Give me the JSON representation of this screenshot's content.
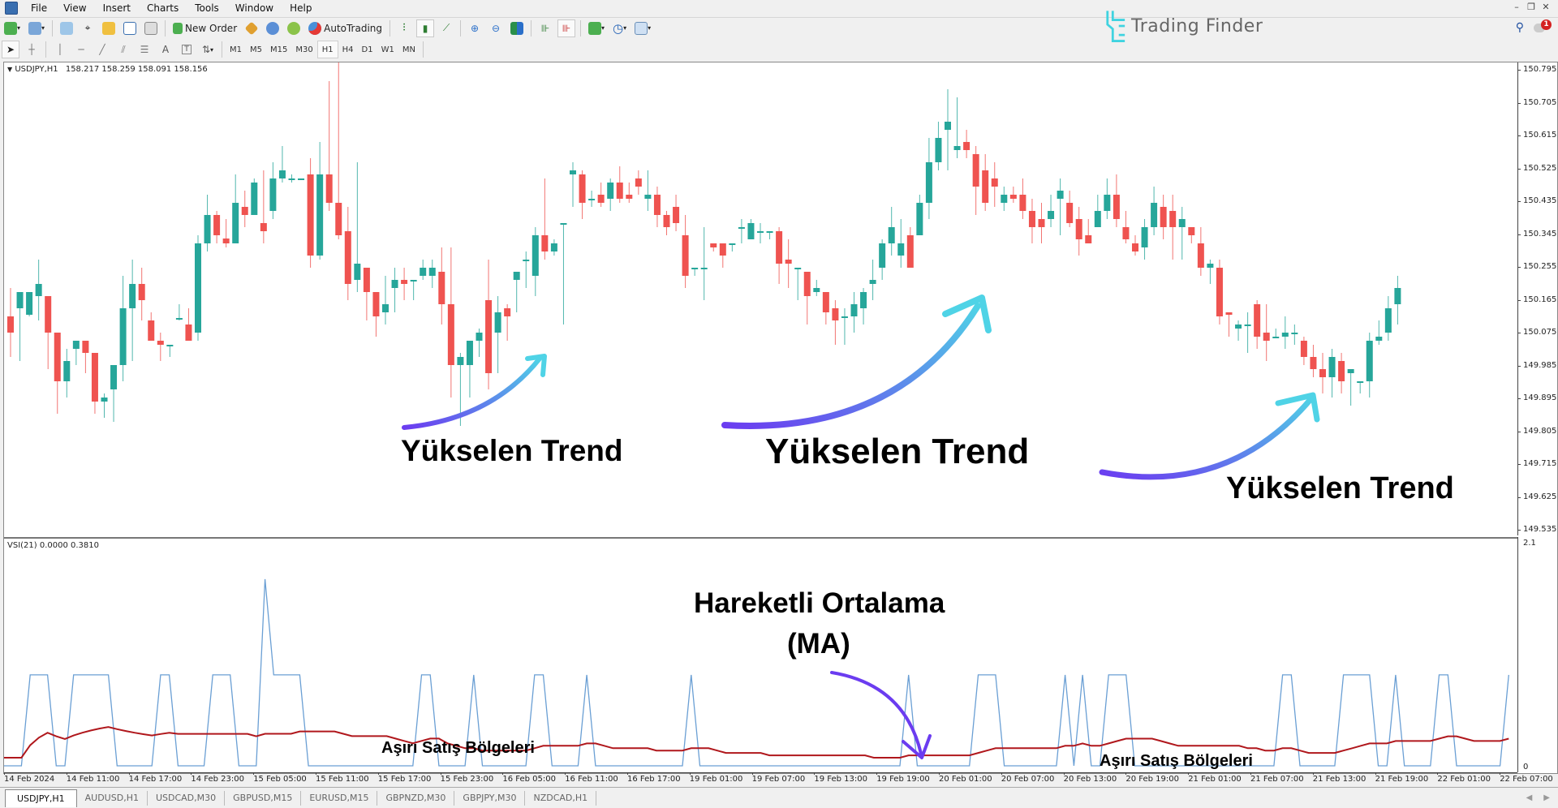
{
  "menu": {
    "items": [
      "File",
      "View",
      "Insert",
      "Charts",
      "Tools",
      "Window",
      "Help"
    ]
  },
  "toolbar": {
    "new_order_label": "New Order",
    "autotrading_label": "AutoTrading",
    "timeframes": [
      "M1",
      "M5",
      "M15",
      "M30",
      "H1",
      "H4",
      "D1",
      "W1",
      "MN"
    ],
    "active_timeframe": "H1"
  },
  "brand": {
    "logo_text": "Trading Finder",
    "logo_color": "#3fd3e0"
  },
  "notifications": {
    "count": "1"
  },
  "chart": {
    "symbol_label": "USDJPY,H1",
    "ohlc_label": "158.217 158.259 158.091 158.156",
    "price_ticks": [
      "150.795",
      "150.705",
      "150.615",
      "150.525",
      "150.435",
      "150.345",
      "150.255",
      "150.165",
      "150.075",
      "149.985",
      "149.895",
      "149.805",
      "149.715",
      "149.625",
      "149.535"
    ],
    "up_color": "#26a69a",
    "down_color": "#ef5350"
  },
  "indicator": {
    "label": "VSI(21) 0.0000 0.3810",
    "axis_max": "2.1",
    "axis_min": "0",
    "vsi_color": "#6a9fd4",
    "ma_color": "#b0171c"
  },
  "time_axis": [
    "14 Feb 2024",
    "14 Feb 11:00",
    "14 Feb 17:00",
    "14 Feb 23:00",
    "15 Feb 05:00",
    "15 Feb 11:00",
    "15 Feb 17:00",
    "15 Feb 23:00",
    "16 Feb 05:00",
    "16 Feb 11:00",
    "16 Feb 17:00",
    "19 Feb 01:00",
    "19 Feb 07:00",
    "19 Feb 13:00",
    "19 Feb 19:00",
    "20 Feb 01:00",
    "20 Feb 07:00",
    "20 Feb 13:00",
    "20 Feb 19:00",
    "21 Feb 01:00",
    "21 Feb 07:00",
    "21 Feb 13:00",
    "21 Feb 19:00",
    "22 Feb 01:00",
    "22 Feb 07:00"
  ],
  "annotations": {
    "trend1": "Yükselen Trend",
    "trend2": "Yükselen Trend",
    "trend3": "Yükselen Trend",
    "ma_title_line1": "Hareketli Ortalama",
    "ma_title_line2": "(MA)",
    "oversold1": "Aşırı Satış Bölgeleri",
    "oversold2": "Aşırı Satış Bölgeleri"
  },
  "symbol_tabs": [
    "USDJPY,H1",
    "AUDUSD,H1",
    "USDCAD,M30",
    "GBPUSD,M15",
    "EURUSD,M15",
    "GBPNZD,M30",
    "GBPJPY,M30",
    "NZDCAD,H1"
  ],
  "candles": [
    [
      210,
      190,
      245,
      160
    ],
    [
      220,
      240,
      185,
      155
    ],
    [
      212,
      240,
      210,
      230
    ],
    [
      235,
      250,
      205,
      280
    ],
    [
      235,
      190,
      160,
      145
    ],
    [
      190,
      130,
      115,
      90
    ],
    [
      130,
      155,
      170,
      110
    ],
    [
      170,
      180,
      170,
      150
    ],
    [
      180,
      165,
      180,
      140
    ],
    [
      165,
      105,
      110,
      90
    ],
    [
      105,
      110,
      115,
      85
    ],
    [
      120,
      150,
      145,
      80
    ],
    [
      150,
      220,
      260,
      130
    ],
    [
      220,
      250,
      280,
      155
    ],
    [
      250,
      230,
      270,
      205
    ],
    [
      205,
      180,
      215,
      185
    ],
    [
      180,
      175,
      190,
      155
    ],
    [
      175,
      175,
      170,
      160
    ],
    [
      208,
      208,
      205,
      225
    ],
    [
      200,
      180,
      220,
      180
    ],
    [
      190,
      300,
      310,
      180
    ],
    [
      300,
      335,
      360,
      290
    ],
    [
      335,
      310,
      340,
      300
    ],
    [
      306,
      300,
      330,
      295
    ],
    [
      300,
      350,
      385,
      300
    ],
    [
      345,
      335,
      365,
      320
    ],
    [
      335,
      375,
      380,
      335
    ],
    [
      325,
      315,
      390,
      300
    ],
    [
      340,
      380,
      400,
      330
    ],
    [
      380,
      390,
      420,
      375
    ],
    [
      380,
      380,
      385,
      375
    ],
    [
      380,
      380,
      380,
      380
    ],
    [
      385,
      285,
      405,
      270
    ],
    [
      285,
      385,
      425,
      280
    ],
    [
      385,
      350,
      500,
      340
    ],
    [
      350,
      310,
      530,
      305
    ],
    [
      315,
      250,
      345,
      230
    ],
    [
      255,
      275,
      400,
      240
    ],
    [
      270,
      240,
      255,
      205
    ],
    [
      240,
      210,
      215,
      185
    ],
    [
      215,
      225,
      260,
      200
    ],
    [
      245,
      255,
      270,
      215
    ],
    [
      255,
      250,
      270,
      230
    ],
    [
      255,
      255,
      255,
      230
    ],
    [
      260,
      270,
      280,
      255
    ],
    [
      260,
      270,
      280,
      245
    ],
    [
      265,
      225,
      295,
      200
    ],
    [
      225,
      150,
      295,
      110
    ],
    [
      150,
      160,
      165,
      75
    ],
    [
      150,
      180,
      180,
      110
    ],
    [
      180,
      190,
      195,
      160
    ],
    [
      230,
      140,
      280,
      120
    ],
    [
      190,
      215,
      235,
      140
    ],
    [
      220,
      210,
      225,
      180
    ],
    [
      255,
      265,
      255,
      215
    ],
    [
      280,
      280,
      290,
      245
    ],
    [
      260,
      310,
      320,
      235
    ],
    [
      310,
      290,
      380,
      280
    ],
    [
      290,
      300,
      305,
      285
    ],
    [
      325,
      325,
      275,
      200
    ],
    [
      385,
      390,
      400,
      345
    ],
    [
      385,
      350,
      390,
      330
    ],
    [
      355,
      355,
      365,
      345
    ],
    [
      360,
      350,
      375,
      345
    ],
    [
      355,
      375,
      380,
      340
    ],
    [
      375,
      355,
      395,
      350
    ],
    [
      360,
      355,
      375,
      350
    ],
    [
      380,
      370,
      390,
      360
    ],
    [
      355,
      360,
      390,
      340
    ],
    [
      360,
      335,
      370,
      320
    ],
    [
      335,
      320,
      340,
      310
    ],
    [
      345,
      325,
      360,
      315
    ],
    [
      310,
      260,
      335,
      245
    ],
    [
      270,
      270,
      265,
      260
    ],
    [
      270,
      270,
      320,
      230
    ],
    [
      300,
      295,
      300,
      290
    ],
    [
      300,
      285,
      300,
      270
    ],
    [
      300,
      300,
      300,
      290
    ],
    [
      320,
      320,
      330,
      300
    ],
    [
      305,
      325,
      330,
      310
    ],
    [
      315,
      315,
      325,
      300
    ],
    [
      315,
      315,
      315,
      305
    ],
    [
      315,
      275,
      320,
      250
    ],
    [
      280,
      275,
      305,
      245
    ],
    [
      270,
      270,
      260,
      230
    ],
    [
      265,
      235,
      265,
      200
    ],
    [
      240,
      245,
      255,
      235
    ],
    [
      240,
      215,
      240,
      200
    ],
    [
      220,
      205,
      230,
      175
    ],
    [
      210,
      210,
      220,
      175
    ],
    [
      210,
      225,
      240,
      190
    ],
    [
      220,
      240,
      245,
      200
    ],
    [
      250,
      255,
      280,
      230
    ],
    [
      270,
      300,
      305,
      255
    ],
    [
      300,
      320,
      345,
      285
    ],
    [
      285,
      300,
      330,
      270
    ],
    [
      310,
      270,
      320,
      300
    ],
    [
      310,
      350,
      360,
      320
    ],
    [
      350,
      400,
      430,
      330
    ],
    [
      400,
      430,
      450,
      390
    ],
    [
      440,
      450,
      490,
      390
    ],
    [
      415,
      420,
      480,
      405
    ],
    [
      425,
      415,
      440,
      405
    ],
    [
      410,
      370,
      420,
      335
    ],
    [
      390,
      350,
      410,
      340
    ],
    [
      380,
      370,
      400,
      345
    ],
    [
      350,
      360,
      370,
      340
    ],
    [
      360,
      355,
      370,
      350
    ],
    [
      360,
      340,
      380,
      330
    ],
    [
      340,
      320,
      355,
      300
    ],
    [
      330,
      320,
      350,
      300
    ],
    [
      330,
      340,
      360,
      320
    ],
    [
      355,
      365,
      380,
      310
    ],
    [
      350,
      325,
      365,
      320
    ],
    [
      330,
      305,
      345,
      285
    ],
    [
      310,
      300,
      330,
      305
    ],
    [
      320,
      340,
      360,
      320
    ],
    [
      340,
      360,
      380,
      330
    ],
    [
      360,
      330,
      385,
      320
    ],
    [
      320,
      305,
      340,
      300
    ],
    [
      300,
      290,
      310,
      285
    ],
    [
      295,
      320,
      330,
      280
    ],
    [
      320,
      350,
      370,
      310
    ],
    [
      345,
      320,
      360,
      305
    ],
    [
      340,
      320,
      360,
      280
    ],
    [
      320,
      330,
      345,
      280
    ],
    [
      320,
      310,
      320,
      300
    ],
    [
      300,
      270,
      320,
      260
    ],
    [
      270,
      275,
      280,
      250
    ],
    [
      270,
      210,
      280,
      200
    ],
    [
      215,
      212,
      212,
      185
    ],
    [
      195,
      200,
      205,
      180
    ],
    [
      200,
      200,
      215,
      165
    ],
    [
      225,
      185,
      230,
      170
    ],
    [
      190,
      180,
      225,
      155
    ],
    [
      185,
      185,
      195,
      185
    ],
    [
      185,
      190,
      210,
      170
    ],
    [
      190,
      190,
      200,
      175
    ],
    [
      180,
      160,
      185,
      150
    ],
    [
      160,
      145,
      175,
      135
    ],
    [
      145,
      135,
      165,
      115
    ],
    [
      135,
      160,
      170,
      110
    ],
    [
      155,
      130,
      165,
      115
    ],
    [
      140,
      145,
      135,
      100
    ],
    [
      130,
      130,
      130,
      115
    ],
    [
      130,
      180,
      190,
      110
    ],
    [
      180,
      185,
      205,
      175
    ],
    [
      190,
      220,
      235,
      180
    ],
    [
      225,
      245,
      260,
      200
    ]
  ],
  "vsi_series": [
    0,
    0,
    0,
    0.95,
    0.95,
    0.95,
    0,
    0,
    0.95,
    0.95,
    0.95,
    0.95,
    0.95,
    0,
    0,
    0,
    0,
    0,
    0.95,
    0.95,
    0,
    0,
    0,
    0,
    0.95,
    0.95,
    0.95,
    0,
    0,
    0,
    1.95,
    0.95,
    0.95,
    0.95,
    0.95,
    0,
    0,
    0,
    0,
    0,
    0,
    0,
    0,
    0,
    0,
    0,
    0,
    0,
    0.95,
    0.95,
    0,
    0,
    0,
    0,
    0.95,
    0,
    0,
    0,
    0,
    0,
    0,
    0.95,
    0.95,
    0,
    0,
    0,
    0,
    0.95,
    0,
    0,
    0,
    0,
    0,
    0,
    0,
    0,
    0,
    0,
    0,
    0.95,
    0,
    0,
    0,
    0,
    0,
    0,
    0,
    0,
    0,
    0,
    0,
    0,
    0,
    0,
    0,
    0,
    0,
    0,
    0,
    0,
    0,
    0,
    0,
    0,
    0.95,
    0,
    0,
    0,
    0,
    0,
    0,
    0,
    0.95,
    0.95,
    0.95,
    0,
    0,
    0,
    0,
    0,
    0,
    0,
    0.95,
    0,
    0.95,
    0,
    0,
    0.95,
    0.95,
    0.95,
    0,
    0,
    0,
    0,
    0,
    0,
    0,
    0,
    0,
    0,
    0,
    0,
    0,
    0,
    0,
    0,
    0,
    0.95,
    0.95,
    0,
    0,
    0,
    0,
    0,
    0.95,
    0.95,
    0.95,
    0.95,
    0,
    0,
    0.95,
    0,
    0,
    0,
    0,
    0.95,
    0.95,
    0,
    0,
    0,
    0,
    0,
    0,
    0.95
  ]
}
